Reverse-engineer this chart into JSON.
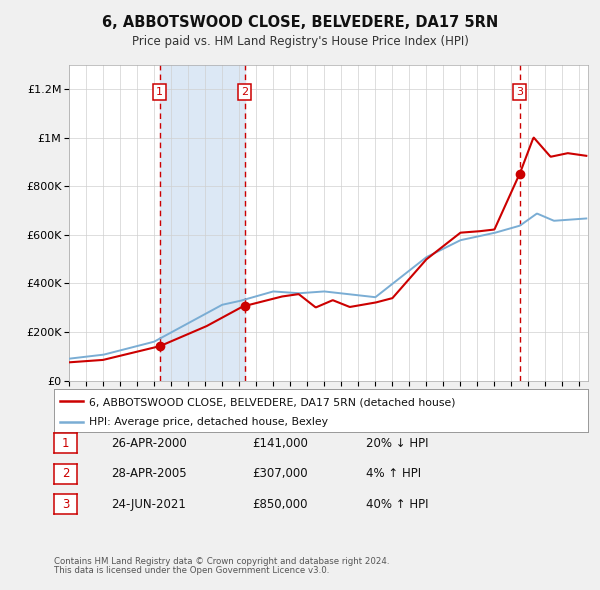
{
  "title": "6, ABBOTSWOOD CLOSE, BELVEDERE, DA17 5RN",
  "subtitle": "Price paid vs. HM Land Registry's House Price Index (HPI)",
  "background_color": "#f0f0f0",
  "plot_bg_color": "#ffffff",
  "ylim": [
    0,
    1300000
  ],
  "xlim_start": 1995.0,
  "xlim_end": 2025.5,
  "yticks": [
    0,
    200000,
    400000,
    600000,
    800000,
    1000000,
    1200000
  ],
  "ytick_labels": [
    "£0",
    "£200K",
    "£400K",
    "£600K",
    "£800K",
    "£1M",
    "£1.2M"
  ],
  "xticks": [
    1995,
    1996,
    1997,
    1998,
    1999,
    2000,
    2001,
    2002,
    2003,
    2004,
    2005,
    2006,
    2007,
    2008,
    2009,
    2010,
    2011,
    2012,
    2013,
    2014,
    2015,
    2016,
    2017,
    2018,
    2019,
    2020,
    2021,
    2022,
    2023,
    2024,
    2025
  ],
  "sale_dates": [
    2000.32,
    2005.32,
    2021.48
  ],
  "sale_prices": [
    141000,
    307000,
    850000
  ],
  "sale_labels": [
    "1",
    "2",
    "3"
  ],
  "sale_line_color": "#cc0000",
  "hpi_line_color": "#7aadd4",
  "shaded_region_color": "#dce8f5",
  "dashed_line_color": "#cc0000",
  "legend_entry1": "6, ABBOTSWOOD CLOSE, BELVEDERE, DA17 5RN (detached house)",
  "legend_entry2": "HPI: Average price, detached house, Bexley",
  "table_rows": [
    {
      "num": "1",
      "date": "26-APR-2000",
      "price": "£141,000",
      "hpi": "20% ↓ HPI"
    },
    {
      "num": "2",
      "date": "28-APR-2005",
      "price": "£307,000",
      "hpi": "4% ↑ HPI"
    },
    {
      "num": "3",
      "date": "24-JUN-2021",
      "price": "£850,000",
      "hpi": "40% ↑ HPI"
    }
  ],
  "footnote1": "Contains HM Land Registry data © Crown copyright and database right 2024.",
  "footnote2": "This data is licensed under the Open Government Licence v3.0."
}
